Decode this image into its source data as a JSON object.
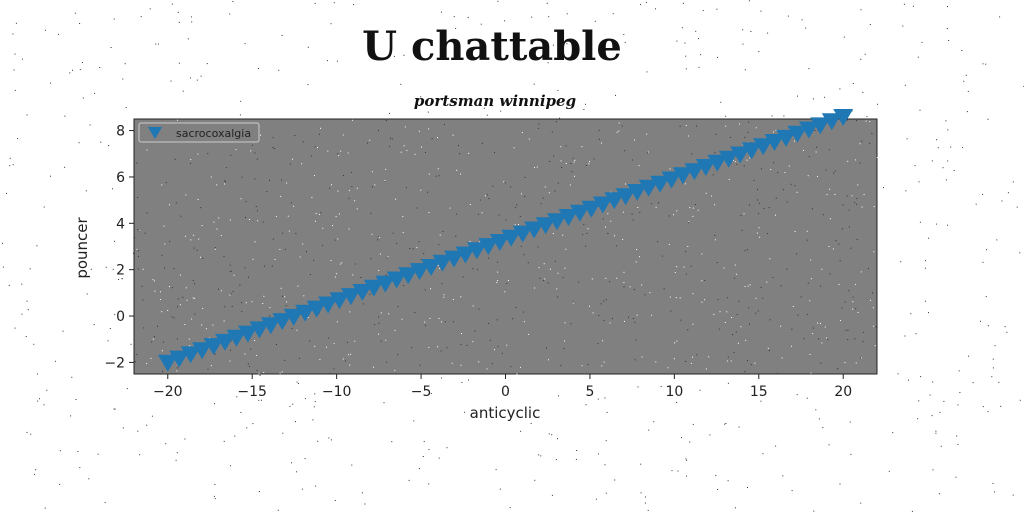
{
  "colors": {
    "page_background": "#ffffff",
    "plot_background": "#808080",
    "marker": "#1f77b4",
    "speckle_light": "#ffffff",
    "speckle_dark": "#333333"
  },
  "chart_data": {
    "type": "scatter",
    "title": "U chattable",
    "subtitle": "portsman winnipeg",
    "xlabel": "anticyclic",
    "ylabel": "pouncer",
    "xlim": [
      -22,
      22
    ],
    "ylim": [
      -2.5,
      8.5
    ],
    "x_ticks": [
      -20,
      -15,
      -10,
      -5,
      0,
      5,
      10,
      15,
      20
    ],
    "y_ticks": [
      -2,
      0,
      2,
      4,
      6,
      8
    ],
    "x_tick_labels": [
      "−20",
      "−15",
      "−10",
      "−5",
      "0",
      "5",
      "10",
      "15",
      "20"
    ],
    "y_tick_labels": [
      "−2",
      "0",
      "2",
      "4",
      "6",
      "8"
    ],
    "grid": false,
    "legend": {
      "position": "top-left"
    },
    "series": [
      {
        "name": "sacrocoxalgia",
        "marker": "triangle-down",
        "color": "#1f77b4",
        "x_start": -20,
        "x_end": 20,
        "count": 60,
        "y_start": -2.0,
        "y_end": 8.6
      }
    ]
  }
}
